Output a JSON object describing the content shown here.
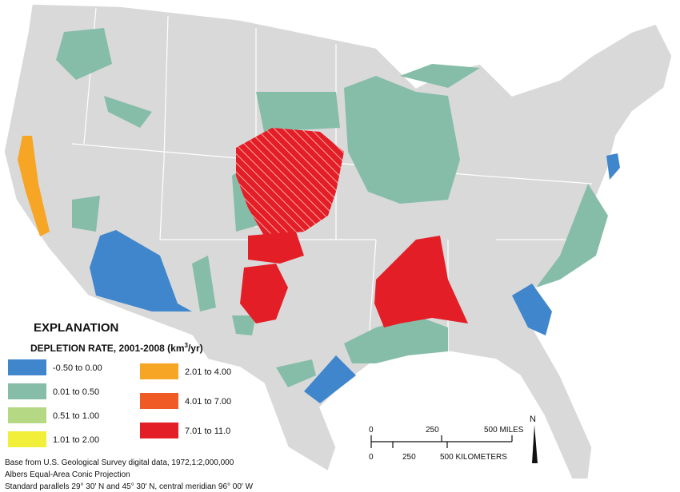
{
  "legend": {
    "title": "EXPLANATION",
    "subtitle": [
      "DEPLETION RATE, 2001-2008 (km",
      "3",
      "/yr)"
    ],
    "classes": [
      {
        "label": "-0.50 to 0.00",
        "color": "#3f86cc"
      },
      {
        "label": "0.01 to 0.50",
        "color": "#86bda9"
      },
      {
        "label": "0.51 to 1.00",
        "color": "#b4d884"
      },
      {
        "label": "1.01 to 2.00",
        "color": "#f2ef3a"
      },
      {
        "label": "2.01 to 4.00",
        "color": "#f6a524"
      },
      {
        "label": "4.01 to 7.00",
        "color": "#ef5a25"
      },
      {
        "label": "7.01 to 11.0",
        "color": "#e41e26"
      }
    ]
  },
  "scale_bar": {
    "miles": [
      "0",
      "250",
      "500 MILES"
    ],
    "kilometers": [
      "0",
      "250",
      "500 KILOMETERS"
    ]
  },
  "north_arrow": "N",
  "credits": [
    "Base from U.S. Geological Survey digital data, 1972,1:2,000,000",
    "Albers Equal-Area Conic Projection",
    "Standard parallels 29° 30′ N and 45° 30′ N, central meridian 96° 00′ W"
  ]
}
